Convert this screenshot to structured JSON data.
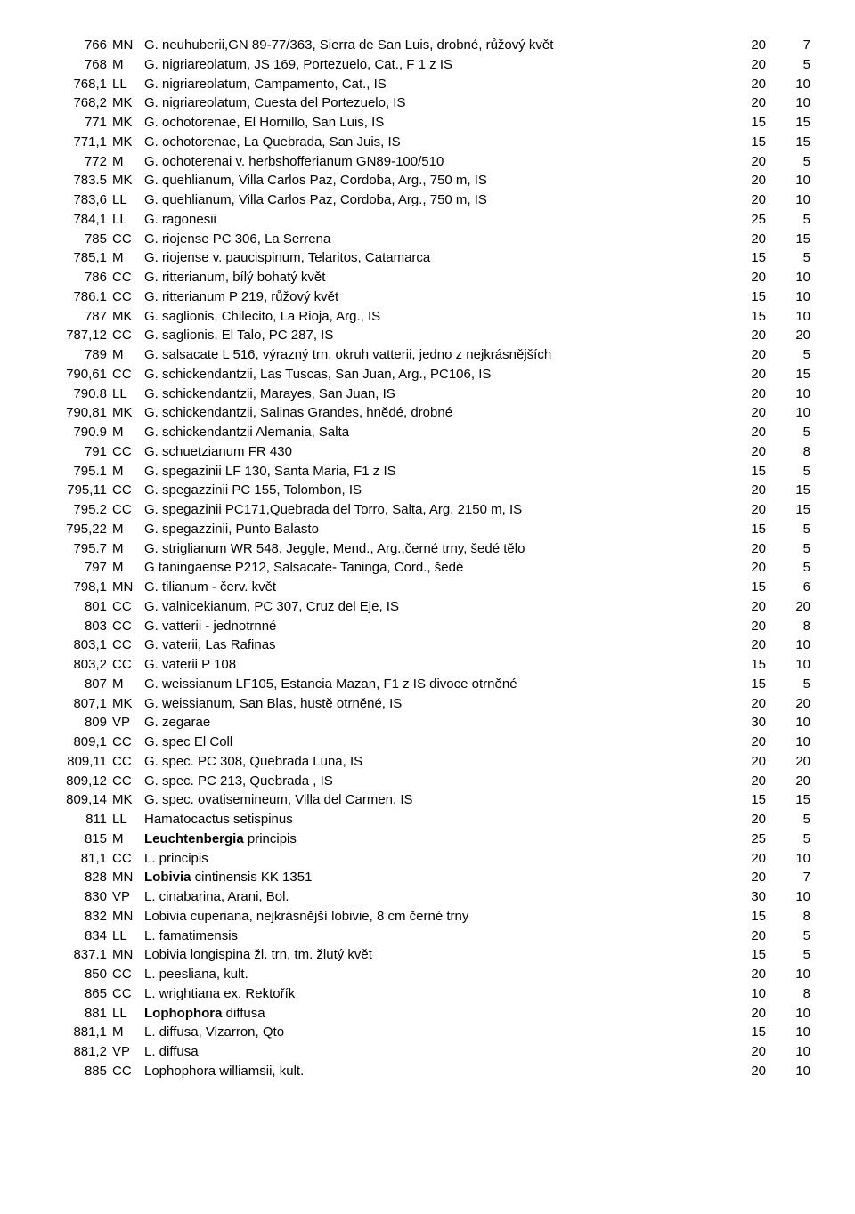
{
  "rows": [
    {
      "num": "766",
      "code": "MN",
      "desc": "G. neuhuberii,GN 89-77/363, Sierra de San Luis, drobné, růžový květ",
      "v1": "20",
      "v2": "7"
    },
    {
      "num": "768",
      "code": "M",
      "desc": "G. nigriareolatum, JS 169, Portezuelo, Cat., F 1 z IS",
      "v1": "20",
      "v2": "5"
    },
    {
      "num": "768,1",
      "code": "LL",
      "desc": "G. nigriareolatum, Campamento, Cat., IS",
      "v1": "20",
      "v2": "10"
    },
    {
      "num": "768,2",
      "code": "MK",
      "desc": "G. nigriareolatum, Cuesta del Portezuelo, IS",
      "v1": "20",
      "v2": "10"
    },
    {
      "num": "771",
      "code": "MK",
      "desc": "G. ochotorenae, El Hornillo, San Luis, IS",
      "v1": "15",
      "v2": "15"
    },
    {
      "num": "771,1",
      "code": "MK",
      "desc": "G. ochotorenae, La Quebrada, San Juis, IS",
      "v1": "15",
      "v2": "15"
    },
    {
      "num": "772",
      "code": "M",
      "desc": "G. ochoterenai v. herbshofferianum GN89-100/510",
      "v1": "20",
      "v2": "5"
    },
    {
      "num": "783.5",
      "code": "MK",
      "desc": "G. quehlianum, Villa Carlos Paz, Cordoba, Arg., 750 m, IS",
      "v1": "20",
      "v2": "10"
    },
    {
      "num": "783,6",
      "code": "LL",
      "desc": "G. quehlianum, Villa Carlos Paz, Cordoba, Arg., 750 m, IS",
      "v1": "20",
      "v2": "10"
    },
    {
      "num": "784,1",
      "code": "LL",
      "desc": "G. ragonesii",
      "v1": "25",
      "v2": "5"
    },
    {
      "num": "785",
      "code": "CC",
      "desc": "G. riojense PC 306, La Serrena",
      "v1": "20",
      "v2": "15"
    },
    {
      "num": "785,1",
      "code": "M",
      "desc": "G. riojense v. paucispinum, Telaritos, Catamarca",
      "v1": "15",
      "v2": "5"
    },
    {
      "num": "786",
      "code": "CC",
      "desc": "G. ritterianum, bílý bohatý květ",
      "v1": "20",
      "v2": "10"
    },
    {
      "num": "786.1",
      "code": "CC",
      "desc": "G. ritterianum P 219, růžový květ",
      "v1": "15",
      "v2": "10"
    },
    {
      "num": "787",
      "code": "MK",
      "desc": "G. saglionis, Chilecito, La Rioja, Arg., IS",
      "v1": "15",
      "v2": "10"
    },
    {
      "num": "787,12",
      "code": "CC",
      "desc": "G. saglionis, El Talo, PC 287, IS",
      "v1": "20",
      "v2": "20"
    },
    {
      "num": "789",
      "code": "M",
      "desc": "G. salsacate L 516, výrazný trn, okruh vatterii, jedno z nejkrásnějších",
      "v1": "20",
      "v2": "5"
    },
    {
      "num": "790,61",
      "code": "CC",
      "desc": "G. schickendantzii, Las Tuscas, San Juan, Arg., PC106, IS",
      "v1": "20",
      "v2": "15"
    },
    {
      "num": "790.8",
      "code": "LL",
      "desc": "G. schickendantzii, Marayes, San Juan, IS",
      "v1": "20",
      "v2": "10"
    },
    {
      "num": "790,81",
      "code": "MK",
      "desc": "G. schickendantzii, Salinas Grandes, hnědé, drobné",
      "v1": "20",
      "v2": "10"
    },
    {
      "num": "790.9",
      "code": "M",
      "desc": "G. schickendantzii Alemania, Salta",
      "v1": "20",
      "v2": "5"
    },
    {
      "num": "791",
      "code": "CC",
      "desc": "G. schuetzianum FR 430",
      "v1": "20",
      "v2": "8"
    },
    {
      "num": "795.1",
      "code": "M",
      "desc": "G. spegazinii LF 130, Santa Maria, F1 z IS",
      "v1": "15",
      "v2": "5"
    },
    {
      "num": "795,11",
      "code": "CC",
      "desc": "G. spegazzinii PC 155, Tolombon, IS",
      "v1": "20",
      "v2": "15"
    },
    {
      "num": "795.2",
      "code": "CC",
      "desc": "G. spegazinii PC171,Quebrada del Torro, Salta, Arg. 2150 m, IS",
      "v1": "20",
      "v2": "15"
    },
    {
      "num": "795,22",
      "code": "M",
      "desc": "G. spegazzinii, Punto Balasto",
      "v1": "15",
      "v2": "5"
    },
    {
      "num": "795.7",
      "code": "M",
      "desc": "G. striglianum WR 548, Jeggle, Mend., Arg.,černé trny, šedé tělo",
      "v1": "20",
      "v2": "5"
    },
    {
      "num": "797",
      "code": "M",
      "desc": "G taningaense P212, Salsacate- Taninga, Cord., šedé",
      "v1": "20",
      "v2": "5"
    },
    {
      "num": "798,1",
      "code": "MN",
      "desc": "G. tilianum - červ. květ",
      "v1": "15",
      "v2": "6"
    },
    {
      "num": "801",
      "code": "CC",
      "desc": "G. valnicekianum, PC 307, Cruz del Eje, IS",
      "v1": "20",
      "v2": "20"
    },
    {
      "num": "803",
      "code": "CC",
      "desc": "G. vatterii  - jednotrnné",
      "v1": "20",
      "v2": "8"
    },
    {
      "num": "803,1",
      "code": "CC",
      "desc": "G. vaterii, Las Rafinas",
      "v1": "20",
      "v2": "10"
    },
    {
      "num": "803,2",
      "code": "CC",
      "desc": "G. vaterii P 108",
      "v1": "15",
      "v2": "10"
    },
    {
      "num": "807",
      "code": "M",
      "desc": "G. weissianum LF105, Estancia Mazan, F1 z IS divoce otrněné",
      "v1": "15",
      "v2": "5"
    },
    {
      "num": "807,1",
      "code": "MK",
      "desc": "G. weissianum, San Blas, hustě otrněné, IS",
      "v1": "20",
      "v2": "20"
    },
    {
      "num": "809",
      "code": "VP",
      "desc": "G. zegarae",
      "v1": "30",
      "v2": "10"
    },
    {
      "num": "809,1",
      "code": "CC",
      "desc": "G. spec El Coll",
      "v1": "20",
      "v2": "10"
    },
    {
      "num": "809,11",
      "code": "CC",
      "desc": "G. spec. PC 308, Quebrada Luna, IS",
      "v1": "20",
      "v2": "20"
    },
    {
      "num": "809,12",
      "code": "CC",
      "desc": "G. spec. PC 213, Quebrada , IS",
      "v1": "20",
      "v2": "20"
    },
    {
      "num": "809,14",
      "code": "MK",
      "desc": "G. spec. ovatisemineum, Villa del Carmen, IS",
      "v1": "15",
      "v2": "15"
    },
    {
      "num": "811",
      "code": "LL",
      "desc": "Hamatocactus setispinus",
      "v1": "20",
      "v2": "5"
    },
    {
      "num": "815",
      "code": "M",
      "desc_parts": [
        {
          "t": "Leuchtenbergia",
          "b": true
        },
        {
          "t": " principis"
        }
      ],
      "v1": "25",
      "v2": "5"
    },
    {
      "num": "81,1",
      "code": "CC",
      "desc": "L. principis",
      "v1": "20",
      "v2": "10"
    },
    {
      "num": "828",
      "code": "MN",
      "desc_parts": [
        {
          "t": "Lobivia",
          "b": true
        },
        {
          "t": " cintinensis KK 1351"
        }
      ],
      "v1": "20",
      "v2": "7"
    },
    {
      "num": "830",
      "code": "VP",
      "desc": "L. cinabarina, Arani, Bol.",
      "v1": "30",
      "v2": "10"
    },
    {
      "num": "832",
      "code": "MN",
      "desc": "Lobivia cuperiana,  nejkrásnější lobivie, 8 cm černé trny",
      "v1": "15",
      "v2": "8"
    },
    {
      "num": "834",
      "code": "LL",
      "desc": "L. famatimensis",
      "v1": "20",
      "v2": "5"
    },
    {
      "num": "837.1",
      "code": "MN",
      "desc": "Lobivia longispina žl. trn, tm. žlutý květ",
      "v1": "15",
      "v2": "5"
    },
    {
      "num": "850",
      "code": "CC",
      "desc": "L. peesliana, kult.",
      "v1": "20",
      "v2": "10"
    },
    {
      "num": "865",
      "code": "CC",
      "desc": "L. wrightiana ex. Rektořík",
      "v1": "10",
      "v2": "8"
    },
    {
      "num": "881",
      "code": "LL",
      "desc_parts": [
        {
          "t": "Lophophora",
          "b": true
        },
        {
          "t": " diffusa"
        }
      ],
      "v1": "20",
      "v2": "10"
    },
    {
      "num": "881,1",
      "code": "M",
      "desc": "L. diffusa, Vizarron, Qto",
      "v1": "15",
      "v2": "10"
    },
    {
      "num": "881,2",
      "code": "VP",
      "desc": "L. diffusa",
      "v1": "20",
      "v2": "10"
    },
    {
      "num": "885",
      "code": "CC",
      "desc": "Lophophora williamsii, kult.",
      "v1": "20",
      "v2": "10"
    }
  ]
}
